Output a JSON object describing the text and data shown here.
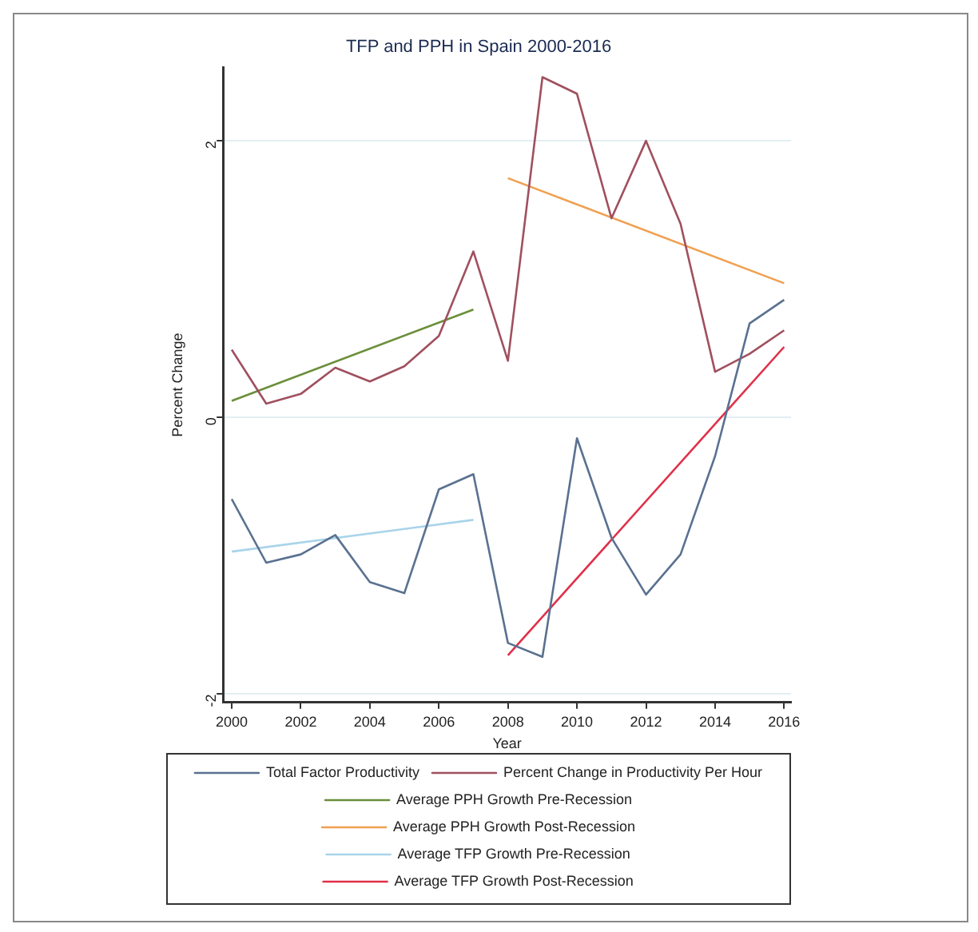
{
  "chart_data": {
    "type": "line",
    "title": "TFP and PPH in Spain 2000-2016",
    "xlabel": "Year",
    "ylabel": "Percent Change",
    "x": [
      2000,
      2001,
      2002,
      2003,
      2004,
      2005,
      2006,
      2007,
      2008,
      2009,
      2010,
      2011,
      2012,
      2013,
      2014,
      2015,
      2016
    ],
    "series": [
      {
        "name": "Total Factor Productivity",
        "color": "#5a7190",
        "values": [
          -0.59,
          -1.05,
          -0.99,
          -0.85,
          -1.19,
          -1.27,
          -0.52,
          -0.41,
          -1.63,
          -1.73,
          -0.15,
          -0.87,
          -1.28,
          -0.99,
          -0.28,
          0.68,
          0.85
        ]
      },
      {
        "name": "Percent Change in Productivity Per Hour",
        "color": "#a0505e",
        "values": [
          0.49,
          0.1,
          0.17,
          0.36,
          0.26,
          0.37,
          0.59,
          1.2,
          0.41,
          2.46,
          2.34,
          1.44,
          2.0,
          1.4,
          0.33,
          0.46,
          0.63
        ]
      },
      {
        "name": "Average PPH Growth Pre-Recession",
        "color": "#6b8e3a",
        "x": [
          2000,
          2007
        ],
        "values": [
          0.12,
          0.78
        ]
      },
      {
        "name": "Average PPH Growth Post-Recession",
        "color": "#f0a050",
        "x": [
          2008,
          2016
        ],
        "values": [
          1.73,
          0.97
        ]
      },
      {
        "name": "Average TFP Growth Pre-Recession",
        "color": "#a8d4ea",
        "x": [
          2000,
          2007
        ],
        "values": [
          -0.97,
          -0.74
        ]
      },
      {
        "name": "Average TFP Growth Post-Recession",
        "color": "#e0304a",
        "x": [
          2008,
          2016
        ],
        "values": [
          -1.72,
          0.51
        ]
      }
    ],
    "xlim": [
      1999.75,
      2016.2
    ],
    "xticks": [
      2000,
      2002,
      2004,
      2006,
      2008,
      2010,
      2012,
      2014,
      2016
    ],
    "ylim": [
      -2.06,
      2.53
    ],
    "yticks": [
      -2,
      0,
      2
    ],
    "grid": "y",
    "legend": "bottom",
    "marker": "none",
    "line_style": "solid"
  }
}
